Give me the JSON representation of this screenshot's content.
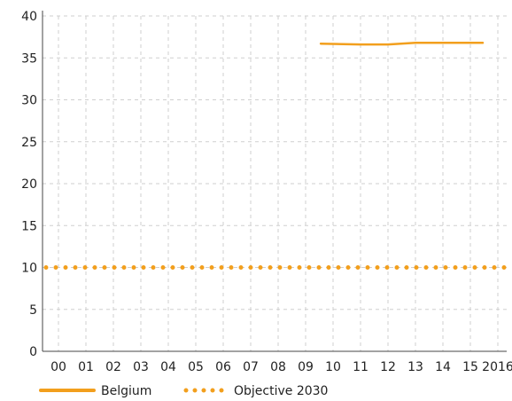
{
  "chart_data": {
    "type": "line",
    "title": "",
    "xlabel": "",
    "ylabel": "",
    "x_categories": [
      "00",
      "01",
      "02",
      "03",
      "04",
      "05",
      "06",
      "07",
      "08",
      "09",
      "10",
      "11",
      "12",
      "13",
      "14",
      "15",
      "2016"
    ],
    "ylim": [
      0,
      40
    ],
    "y_ticks": [
      "0",
      "5",
      "10",
      "15",
      "20",
      "25",
      "30",
      "35",
      "40"
    ],
    "grid": true,
    "legend_position": "bottom-left",
    "series": [
      {
        "name": "Belgium",
        "style": "solid",
        "color": "#F29F1D",
        "x": [
          "10",
          "11",
          "12",
          "13",
          "14",
          "15"
        ],
        "values": [
          36.7,
          36.6,
          36.6,
          36.8,
          36.8,
          36.8
        ]
      },
      {
        "name": "Objective 2030",
        "style": "dotted",
        "color": "#F29F1D",
        "x": [
          "00",
          "2016"
        ],
        "values": [
          10,
          10
        ]
      }
    ]
  }
}
